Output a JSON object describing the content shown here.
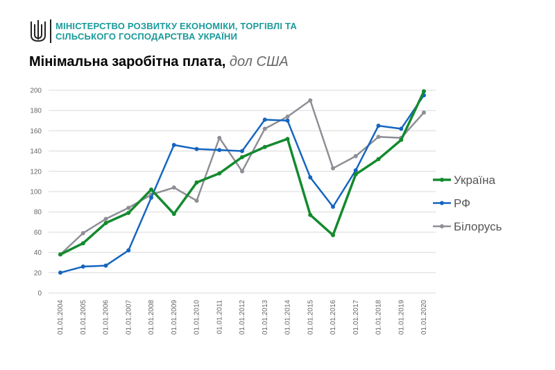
{
  "header": {
    "ministry_line1": "МІНІСТЕРСТВО  РОЗВИТКУ ЕКОНОМІКИ,  ТОРГІВЛІ ТА",
    "ministry_line2": "СІЛЬСЬКОГО  ГОСПОДАРСТВА  УКРАЇНИ",
    "emblem": "trident-emblem-icon"
  },
  "chart_data": {
    "type": "line",
    "title": "Мінімальна заробітна плата,",
    "subtitle": "дол США",
    "xlabel": "",
    "ylabel": "",
    "ylim": [
      0,
      200
    ],
    "yticks": [
      0,
      20,
      40,
      60,
      80,
      100,
      120,
      140,
      160,
      180,
      200
    ],
    "grid": true,
    "legend": "right",
    "categories": [
      "01.01.2004",
      "01.01.2005",
      "01.01.2006",
      "01.01.2007",
      "01.01.2008",
      "01.01.2009",
      "01.01.2010",
      "01.01.2011",
      "01.01.2012",
      "01.01.2013",
      "01.01.2014",
      "01.01.2015",
      "01.01.2016",
      "01.01.2017",
      "01.01.2018",
      "01.01.2019",
      "01.01.2020"
    ],
    "series": [
      {
        "name": "Україна",
        "color": "#138a2e",
        "values": [
          38,
          49,
          69,
          79,
          102,
          78,
          109,
          118,
          134,
          144,
          152,
          77,
          57,
          117,
          132,
          151,
          199
        ]
      },
      {
        "name": "РФ",
        "color": "#1565c0",
        "values": [
          20,
          26,
          27,
          42,
          94,
          146,
          142,
          141,
          140,
          171,
          170,
          114,
          85,
          121,
          165,
          162,
          195
        ]
      },
      {
        "name": "Білорусь",
        "color": "#8e8e96",
        "values": [
          38,
          59,
          73,
          84,
          97,
          104,
          91,
          153,
          120,
          162,
          174,
          190,
          123,
          135,
          154,
          153,
          178
        ]
      }
    ]
  }
}
